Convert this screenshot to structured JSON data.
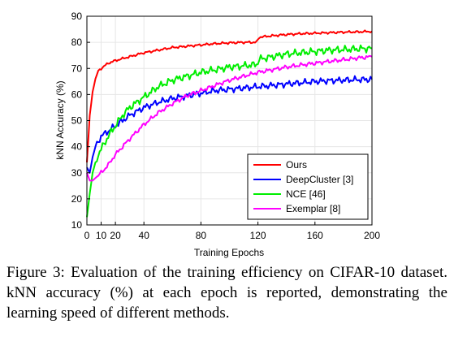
{
  "chart_data": {
    "type": "line",
    "xlabel": "Training Epochs",
    "ylabel": "kNN Accuracy (%)",
    "xlim": [
      0,
      200
    ],
    "ylim": [
      10,
      90
    ],
    "xticks": [
      0,
      10,
      20,
      40,
      80,
      120,
      160,
      200
    ],
    "xtick_labels": [
      "0",
      "10",
      "20",
      "40",
      "80",
      "120",
      "160",
      "200"
    ],
    "yticks": [
      10,
      20,
      30,
      40,
      50,
      60,
      70,
      80,
      90
    ],
    "grid": true,
    "legend_position": "bottom-right",
    "series": [
      {
        "name": "Ours",
        "color": "#ff0000",
        "x": [
          0,
          2,
          4,
          6,
          8,
          10,
          15,
          20,
          30,
          40,
          50,
          60,
          70,
          80,
          90,
          100,
          110,
          119,
          121,
          130,
          140,
          150,
          160,
          170,
          180,
          190,
          200
        ],
        "y": [
          34,
          52,
          61,
          66,
          69,
          70,
          72,
          73,
          74.5,
          76,
          77,
          78,
          78.5,
          79,
          79.5,
          79.8,
          80,
          80,
          82,
          82.5,
          83,
          83.3,
          83.5,
          83.7,
          83.9,
          84,
          84.2
        ]
      },
      {
        "name": "DeepCluster [3]",
        "color": "#0000ff",
        "x": [
          0,
          2,
          4,
          6,
          8,
          10,
          15,
          20,
          25,
          30,
          40,
          50,
          60,
          70,
          80,
          90,
          100,
          110,
          120,
          130,
          140,
          150,
          160,
          170,
          180,
          190,
          200
        ],
        "y": [
          32,
          30,
          36,
          40,
          42,
          44,
          46,
          48,
          50,
          52,
          55,
          57,
          58.5,
          59.5,
          60.5,
          61.5,
          62,
          62.5,
          63,
          63.5,
          64,
          64.5,
          65,
          65.3,
          65.5,
          65.7,
          65.8
        ]
      },
      {
        "name": "NCE [46]",
        "color": "#00ee00",
        "x": [
          0,
          2,
          4,
          6,
          8,
          10,
          15,
          20,
          25,
          30,
          40,
          50,
          60,
          70,
          80,
          90,
          100,
          110,
          119,
          121,
          130,
          140,
          150,
          160,
          170,
          180,
          190,
          200
        ],
        "y": [
          13,
          22,
          30,
          34,
          37,
          39,
          44,
          48,
          52,
          55,
          59,
          63,
          65.5,
          67,
          68.5,
          69.5,
          70.5,
          71,
          71.5,
          73.5,
          74.5,
          75.5,
          76,
          76.5,
          77,
          77.2,
          77.5,
          77.7
        ]
      },
      {
        "name": "Exemplar [8]",
        "color": "#ff00ff",
        "x": [
          0,
          2,
          4,
          6,
          8,
          10,
          15,
          20,
          25,
          30,
          40,
          50,
          60,
          70,
          80,
          90,
          100,
          110,
          120,
          130,
          140,
          150,
          160,
          170,
          180,
          190,
          200
        ],
        "y": [
          30,
          27,
          27,
          28,
          29,
          30,
          33,
          37,
          40,
          43,
          48.5,
          53,
          56.5,
          59.5,
          61.5,
          63.5,
          65.5,
          67,
          68.5,
          69.5,
          70.5,
          71.3,
          72,
          72.7,
          73.3,
          74,
          74.5
        ]
      }
    ]
  },
  "caption": "Figure 3:  Evaluation of the training efficiency on CIFAR-10 dataset. kNN accuracy (%) at each epoch is reported, demonstrating the learning speed of different methods."
}
